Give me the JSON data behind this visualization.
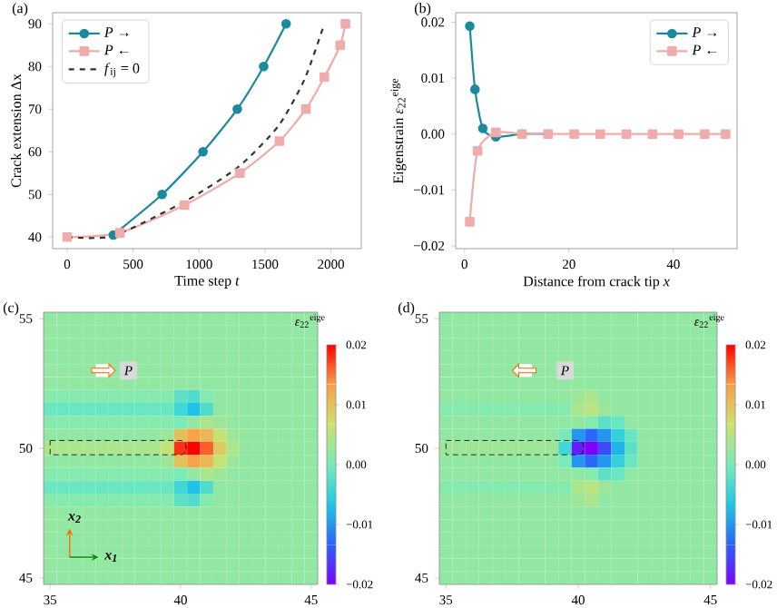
{
  "chart_data": [
    {
      "type": "line",
      "title": "(a)",
      "xlabel": "Time step *t*",
      "ylabel": "Crack extension Δx",
      "xlim": [
        -110,
        2230
      ],
      "ylim": [
        37.3,
        92.6
      ],
      "xticks": [
        0,
        500,
        1000,
        1500,
        2000
      ],
      "yticks": [
        40,
        50,
        60,
        70,
        80,
        90
      ],
      "legend": "top left",
      "series": [
        {
          "name": "*P* →",
          "color": "#1a8a9c",
          "marker": "circle",
          "x": [
            350,
            720,
            1030,
            1290,
            1490,
            1660
          ],
          "values": [
            40.5,
            50,
            60,
            70,
            80,
            90
          ]
        },
        {
          "name": "*P* ←",
          "color": "#f0abab",
          "marker": "square",
          "x": [
            0,
            400,
            890,
            1310,
            1610,
            1810,
            1950,
            2070,
            2110
          ],
          "values": [
            40,
            41,
            47.5,
            55,
            62.5,
            70,
            77.5,
            85,
            90
          ]
        },
        {
          "name": "*f*$_{ij}$ = 0",
          "color": "#333333",
          "marker": "none",
          "line_style": "dashed",
          "x": [
            0,
            350,
            900,
            1300,
            1600,
            1800,
            1950
          ],
          "values": [
            40,
            40.3,
            48.5,
            56.5,
            66,
            77,
            90
          ]
        }
      ]
    },
    {
      "type": "line",
      "title": "(b)",
      "xlabel": "Distance from crack tip *x*",
      "ylabel": "Eigenstrain *ε*$_{22}$$^{eige}$",
      "xlim": [
        -1.7,
        52.2
      ],
      "ylim": [
        -0.0205,
        0.0217
      ],
      "xticks": [
        0,
        20,
        40
      ],
      "yticks": [
        {
          "value": -0.02,
          "label": "−0.02"
        },
        {
          "value": -0.01,
          "label": "−0.01"
        },
        {
          "value": 0,
          "label": "0.00"
        },
        0.01,
        0.02
      ],
      "legend": "top right",
      "series": [
        {
          "name": "*P* →",
          "color": "#1a8a9c",
          "marker": "circle",
          "x": [
            1,
            2,
            3.5,
            6,
            11,
            16
          ],
          "values": [
            0.0193,
            0.008,
            0.001,
            -0.0005,
            0,
            0
          ]
        },
        {
          "name": "*P* ←",
          "color": "#f0abab",
          "marker": "square",
          "x": [
            1,
            2.5,
            6,
            11,
            16,
            21,
            26,
            31,
            36,
            41,
            46,
            50
          ],
          "values": [
            -0.0157,
            -0.003,
            0.0003,
            0,
            0,
            0,
            0,
            0,
            0,
            0,
            0,
            0
          ]
        }
      ]
    },
    {
      "type": "heatmap",
      "title": "(c)",
      "clabel": "*ε*$_{22}$$^{eige}$",
      "clim": [
        -0.02,
        0.02
      ],
      "cticks": [
        {
          "value": 0.02,
          "label": "0.02"
        },
        {
          "value": 0.01,
          "label": "0.01"
        },
        {
          "value": 0,
          "label": "0.00"
        },
        {
          "value": -0.01,
          "label": "−0.01"
        },
        {
          "value": -0.02,
          "label": "−0.02"
        }
      ],
      "annotations": [
        "P",
        "x$_{1}$",
        "x$_{2}$"
      ],
      "categories": [
        "35",
        null,
        null,
        null,
        null,
        null,
        null,
        null,
        null,
        null,
        "40",
        null,
        null,
        null,
        null,
        null,
        null,
        null,
        null,
        null,
        "45"
      ],
      "y_categories": [
        "55",
        null,
        null,
        null,
        null,
        null,
        null,
        null,
        null,
        null,
        "50",
        null,
        null,
        null,
        null,
        null,
        null,
        null,
        null,
        null,
        "45"
      ],
      "cells": [
        [
          0.002,
          0.002,
          0.002,
          0.002,
          0.002,
          0.002,
          0.002,
          0.002,
          0.002,
          0.002,
          0.002,
          0.002,
          0.002,
          0.002,
          0.002,
          0.002,
          0.002,
          0.002,
          0.002,
          0.002,
          0.002
        ],
        [
          0.002,
          0.002,
          0.002,
          0.002,
          0.002,
          0.002,
          0.002,
          0.002,
          0.002,
          0.002,
          0.002,
          0.002,
          0.002,
          0.002,
          0.002,
          0.002,
          0.002,
          0.002,
          0.002,
          0.002,
          0.002
        ],
        [
          0.002,
          0.002,
          0.002,
          0.002,
          0.002,
          0.002,
          0.002,
          0.002,
          0.002,
          0.002,
          0.002,
          0.002,
          0.002,
          0.002,
          0.002,
          0.002,
          0.002,
          0.002,
          0.002,
          0.002,
          0.002
        ],
        [
          0.002,
          0.002,
          0.002,
          0.002,
          0.002,
          0.002,
          0.002,
          0.002,
          0.002,
          0.002,
          0.002,
          0.002,
          0.002,
          0.002,
          0.002,
          0.002,
          0.002,
          0.002,
          0.002,
          0.002,
          0.002
        ],
        [
          0.002,
          0.002,
          0.002,
          0.002,
          null,
          0.002,
          null,
          0.002,
          0.002,
          0.002,
          0.002,
          0.002,
          0.002,
          0.002,
          0.002,
          0.002,
          0.002,
          0.002,
          0.002,
          0.002,
          0.002
        ],
        [
          0.002,
          0.002,
          0.002,
          0.002,
          0.002,
          0.002,
          0.002,
          0.002,
          0.002,
          0.002,
          0.002,
          0.002,
          0.002,
          0.002,
          0.002,
          0.002,
          0.002,
          0.002,
          0.002,
          0.002,
          0.002
        ],
        [
          0.001,
          0.001,
          0.001,
          0.001,
          0.001,
          0.001,
          0.001,
          0.001,
          0.001,
          0.001,
          -0.002,
          -0.003,
          0.001,
          0.002,
          0.002,
          0.002,
          0.002,
          0.002,
          0.002,
          0.002,
          0.002
        ],
        [
          -0.001,
          -0.001,
          -0.001,
          -0.001,
          -0.001,
          -0.001,
          -0.001,
          -0.001,
          -0.001,
          -0.001,
          -0.004,
          -0.007,
          -0.003,
          0.002,
          0.002,
          0.002,
          0.002,
          0.002,
          0.002,
          0.002,
          0.002
        ],
        [
          0.001,
          0.001,
          0.001,
          0.001,
          0.001,
          0.001,
          0.001,
          0.001,
          0.001,
          0.001,
          0,
          0.002,
          0.004,
          0.003,
          0.002,
          0.002,
          0.002,
          0.002,
          0.002,
          0.002,
          0.002
        ],
        [
          0.002,
          0.002,
          0.002,
          0.002,
          0.002,
          0.002,
          0.002,
          0.002,
          0.002,
          0.003,
          0.01,
          0.013,
          0.011,
          0.006,
          0.003,
          0.002,
          0.002,
          0.002,
          0.002,
          0.002,
          0.002
        ],
        [
          0.004,
          0.004,
          0.004,
          0.004,
          0.004,
          0.004,
          0.004,
          0.004,
          0.004,
          0.006,
          0.018,
          0.02,
          0.016,
          0.009,
          0.004,
          0.002,
          0.002,
          0.002,
          0.002,
          0.002,
          0.002
        ],
        [
          0.002,
          0.002,
          0.002,
          0.002,
          0.002,
          0.002,
          0.002,
          0.002,
          0.002,
          0.003,
          0.01,
          0.013,
          0.011,
          0.006,
          0.003,
          0.002,
          0.002,
          0.002,
          0.002,
          0.002,
          0.002
        ],
        [
          0.001,
          0.001,
          0.001,
          0.001,
          0.001,
          0.001,
          0.001,
          0.001,
          0.001,
          0.001,
          0,
          0.002,
          0.004,
          0.003,
          0.002,
          0.002,
          0.002,
          0.002,
          0.002,
          0.002,
          0.002
        ],
        [
          -0.001,
          -0.001,
          -0.001,
          -0.001,
          -0.001,
          -0.001,
          -0.001,
          -0.001,
          -0.001,
          -0.001,
          -0.004,
          -0.007,
          -0.003,
          0.002,
          0.002,
          0.002,
          0.002,
          0.002,
          0.002,
          0.002,
          0.002
        ],
        [
          0.001,
          0.001,
          0.001,
          0.001,
          0.001,
          0.001,
          0.001,
          0.001,
          0.001,
          0.001,
          -0.002,
          -0.003,
          0.001,
          0.002,
          0.002,
          0.002,
          0.002,
          0.002,
          0.002,
          0.002,
          0.002
        ],
        [
          0.002,
          0.002,
          0.002,
          0.002,
          0.002,
          0.002,
          0.002,
          0.002,
          0.002,
          0.002,
          0.002,
          0.002,
          0.002,
          0.002,
          0.002,
          0.002,
          0.002,
          0.002,
          0.002,
          0.002,
          0.002
        ],
        [
          0.002,
          0.002,
          0.002,
          0.002,
          0.002,
          0.002,
          0.002,
          0.002,
          0.002,
          0.002,
          0.002,
          0.002,
          0.002,
          0.002,
          0.002,
          0.002,
          0.002,
          0.002,
          0.002,
          0.002,
          0.002
        ],
        [
          0.002,
          0.002,
          0.002,
          0.002,
          0.002,
          0.002,
          0.002,
          0.002,
          0.002,
          0.002,
          0.002,
          0.002,
          0.002,
          0.002,
          0.002,
          0.002,
          0.002,
          0.002,
          0.002,
          0.002,
          0.002
        ],
        [
          0.002,
          0.002,
          0.002,
          0.002,
          0.002,
          0.002,
          0.002,
          0.002,
          0.002,
          0.002,
          0.002,
          0.002,
          0.002,
          0.002,
          0.002,
          0.002,
          0.002,
          0.002,
          0.002,
          0.002,
          0.002
        ],
        [
          0.002,
          0.002,
          0.002,
          0.002,
          0.002,
          0.002,
          0.002,
          0.002,
          0.002,
          0.002,
          0.002,
          0.002,
          0.002,
          0.002,
          0.002,
          0.002,
          0.002,
          0.002,
          0.002,
          0.002,
          0.002
        ],
        [
          0.002,
          0.002,
          0.002,
          0.002,
          0.002,
          0.002,
          0.002,
          0.002,
          0.002,
          0.002,
          0.002,
          0.002,
          0.002,
          0.002,
          0.002,
          0.002,
          0.002,
          0.002,
          0.002,
          0.002,
          0.002
        ]
      ]
    },
    {
      "type": "heatmap",
      "title": "(d)",
      "clabel": "*ε*$_{22}$$^{eige}$",
      "clim": [
        -0.02,
        0.02
      ],
      "cticks": [
        {
          "value": 0.02,
          "label": "0.02"
        },
        {
          "value": 0.01,
          "label": "0.01"
        },
        {
          "value": 0,
          "label": "0.00"
        },
        {
          "value": -0.01,
          "label": "−0.01"
        },
        {
          "value": -0.02,
          "label": "−0.02"
        }
      ],
      "annotations": [
        "P"
      ],
      "categories": [
        "35",
        null,
        null,
        null,
        null,
        null,
        null,
        null,
        null,
        null,
        "40",
        null,
        null,
        null,
        null,
        null,
        null,
        null,
        null,
        null,
        "45"
      ],
      "y_categories": [
        "55",
        null,
        null,
        null,
        null,
        null,
        null,
        null,
        null,
        null,
        "50",
        null,
        null,
        null,
        null,
        null,
        null,
        null,
        null,
        null,
        "45"
      ],
      "cells": [
        [
          0.002,
          0.002,
          0.002,
          0.002,
          0.002,
          0.002,
          0.002,
          0.002,
          0.002,
          0.002,
          0.002,
          0.002,
          0.002,
          0.002,
          0.002,
          0.002,
          0.002,
          0.002,
          0.002,
          0.002,
          0.002
        ],
        [
          0.002,
          0.002,
          0.002,
          0.002,
          0.002,
          0.002,
          0.002,
          0.002,
          0.002,
          0.002,
          0.002,
          0.002,
          0.002,
          0.002,
          0.002,
          0.002,
          0.002,
          0.002,
          0.002,
          0.002,
          0.002
        ],
        [
          0.002,
          0.002,
          0.002,
          0.002,
          0.002,
          0.002,
          0.002,
          0.002,
          0.002,
          0.002,
          0.002,
          0.002,
          0.002,
          0.002,
          0.002,
          0.002,
          0.002,
          0.002,
          0.002,
          0.002,
          0.002
        ],
        [
          0.002,
          0.002,
          0.002,
          0.002,
          0.002,
          0.002,
          0.002,
          0.002,
          0.002,
          0.002,
          0.002,
          0.002,
          0.002,
          0.002,
          0.002,
          0.002,
          0.002,
          0.002,
          0.002,
          0.002,
          0.002
        ],
        [
          0.002,
          0.002,
          0.002,
          0.002,
          0.002,
          0.002,
          null,
          0.002,
          0.002,
          null,
          0.002,
          0.002,
          0.002,
          0.002,
          0.002,
          0.002,
          0.002,
          0.002,
          0.002,
          0.002,
          0.002
        ],
        [
          0.002,
          0.002,
          0.002,
          0.002,
          0.002,
          0.002,
          0.002,
          0.002,
          0.002,
          0.002,
          0.002,
          0.002,
          0.002,
          0.002,
          0.002,
          0.002,
          0.002,
          0.002,
          0.002,
          0.002,
          0.002
        ],
        [
          0.002,
          0.002,
          0.002,
          0.002,
          0.002,
          0.002,
          0.002,
          0.002,
          0.002,
          0.002,
          0.003,
          0.004,
          0.002,
          0.002,
          0.002,
          0.002,
          0.002,
          0.002,
          0.002,
          0.002,
          0.002
        ],
        [
          0.001,
          0.001,
          0.001,
          0.001,
          0.001,
          0.001,
          0.001,
          0.001,
          0.001,
          0.001,
          0.004,
          0.005,
          0.003,
          0.002,
          0.002,
          0.002,
          0.002,
          0.002,
          0.002,
          0.002,
          0.002
        ],
        [
          0.002,
          0.002,
          0.002,
          0.002,
          0.002,
          0.002,
          0.002,
          0.002,
          0.002,
          0.002,
          0.002,
          0.001,
          -0.002,
          -0.001,
          0.002,
          0.002,
          0.002,
          0.002,
          0.002,
          0.002,
          0.002
        ],
        [
          0.002,
          0.002,
          0.002,
          0.002,
          0.002,
          0.002,
          0.002,
          0.002,
          0.002,
          0,
          -0.01,
          -0.013,
          -0.01,
          -0.005,
          -0.001,
          0.002,
          0.002,
          0.002,
          0.002,
          0.002,
          0.002
        ],
        [
          0.003,
          0.003,
          0.003,
          0.003,
          0.003,
          0.003,
          0.003,
          0.003,
          0.003,
          -0.004,
          -0.018,
          -0.02,
          -0.015,
          -0.008,
          -0.002,
          0.002,
          0.002,
          0.002,
          0.002,
          0.002,
          0.002
        ],
        [
          0.002,
          0.002,
          0.002,
          0.002,
          0.002,
          0.002,
          0.002,
          0.002,
          0.002,
          0,
          -0.01,
          -0.013,
          -0.01,
          -0.005,
          -0.001,
          0.002,
          0.002,
          0.002,
          0.002,
          0.002,
          0.002
        ],
        [
          0.002,
          0.002,
          0.002,
          0.002,
          0.002,
          0.002,
          0.002,
          0.002,
          0.002,
          0.002,
          0.002,
          0.001,
          -0.002,
          -0.001,
          0.002,
          0.002,
          0.002,
          0.002,
          0.002,
          0.002,
          0.002
        ],
        [
          0.001,
          0.001,
          0.001,
          0.001,
          0.001,
          0.001,
          0.001,
          0.001,
          0.001,
          0.001,
          0.004,
          0.005,
          0.003,
          0.002,
          0.002,
          0.002,
          0.002,
          0.002,
          0.002,
          0.002,
          0.002
        ],
        [
          0.002,
          0.002,
          0.002,
          0.002,
          0.002,
          0.002,
          0.002,
          0.002,
          0.002,
          0.002,
          0.003,
          0.004,
          0.002,
          0.002,
          0.002,
          0.002,
          0.002,
          0.002,
          0.002,
          0.002,
          0.002
        ],
        [
          0.002,
          0.002,
          0.002,
          0.002,
          0.002,
          0.002,
          0.002,
          0.002,
          0.002,
          0.002,
          0.002,
          0.002,
          0.002,
          0.002,
          0.002,
          0.002,
          0.002,
          0.002,
          0.002,
          0.002,
          0.002
        ],
        [
          0.002,
          0.002,
          0.002,
          0.002,
          0.002,
          0.002,
          0.002,
          0.002,
          0.002,
          0.002,
          0.002,
          0.002,
          0.002,
          0.002,
          0.002,
          0.002,
          0.002,
          0.002,
          0.002,
          0.002,
          0.002
        ],
        [
          0.002,
          0.002,
          0.002,
          0.002,
          0.002,
          0.002,
          0.002,
          0.002,
          0.002,
          0.002,
          0.002,
          0.002,
          0.002,
          0.002,
          0.002,
          0.002,
          0.002,
          0.002,
          0.002,
          0.002,
          0.002
        ],
        [
          0.002,
          0.002,
          0.002,
          0.002,
          0.002,
          0.002,
          0.002,
          0.002,
          0.002,
          0.002,
          0.002,
          0.002,
          0.002,
          0.002,
          0.002,
          0.002,
          0.002,
          0.002,
          0.002,
          0.002,
          0.002
        ],
        [
          0.002,
          0.002,
          0.002,
          0.002,
          0.002,
          0.002,
          0.002,
          0.002,
          0.002,
          0.002,
          0.002,
          0.002,
          0.002,
          0.002,
          0.002,
          0.002,
          0.002,
          0.002,
          0.002,
          0.002,
          0.002
        ],
        [
          0.002,
          0.002,
          0.002,
          0.002,
          0.002,
          0.002,
          0.002,
          0.002,
          0.002,
          0.002,
          0.002,
          0.002,
          0.002,
          0.002,
          0.002,
          0.002,
          0.002,
          0.002,
          0.002,
          0.002,
          0.002
        ]
      ]
    }
  ]
}
